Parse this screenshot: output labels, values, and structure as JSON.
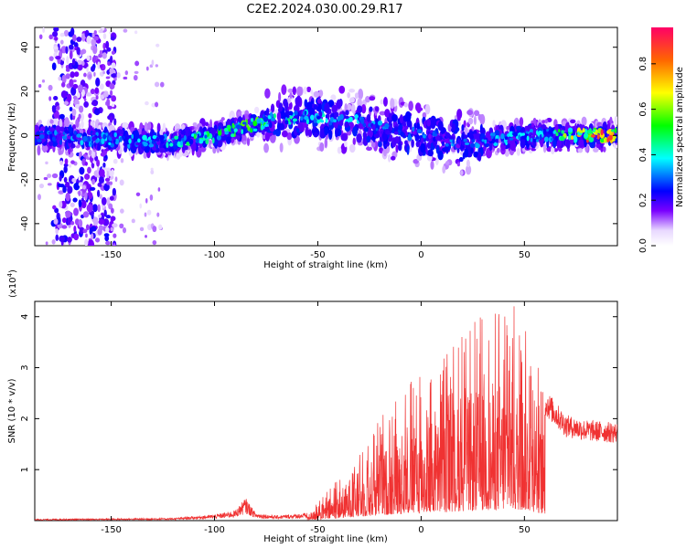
{
  "title": "C2E2.2024.030.00.29.R17",
  "chart_data": [
    {
      "type": "heatmap",
      "xlabel": "Height of straight line (km)",
      "ylabel": "Frequency (Hz)",
      "xlim": [
        -187,
        95
      ],
      "ylim": [
        -50,
        49
      ],
      "xticks": [
        -150,
        -100,
        -50,
        0,
        50
      ],
      "yticks": [
        -40,
        -20,
        0,
        20,
        40
      ],
      "xtick_labels": [
        "-150",
        "-100",
        "-50",
        "0",
        "50"
      ],
      "ytick_labels": [
        "-40",
        "-20",
        "0",
        "20",
        "40"
      ],
      "colorbar": {
        "label": "Normalized spectral amplitude",
        "range": [
          0,
          0.96
        ],
        "ticks": [
          0.0,
          0.2,
          0.4,
          0.6,
          0.8
        ],
        "tick_labels": [
          "0.0",
          "0.2",
          "0.4",
          "0.6",
          "0.8"
        ],
        "colors": [
          "#ffffff",
          "#7a00ff",
          "#0000ff",
          "#00ffff",
          "#00ff00",
          "#ffff00",
          "#ff6600",
          "#ff0066"
        ]
      },
      "ridge": {
        "x": [
          -185,
          -150,
          -120,
          -100,
          -80,
          -70,
          -50,
          -30,
          -10,
          0,
          20,
          40,
          60,
          80,
          93
        ],
        "center_hz": [
          0,
          -2,
          -3,
          0,
          5,
          8,
          8,
          6,
          2,
          0,
          -3,
          -1,
          0,
          0,
          0
        ],
        "peak_amplitude": [
          0.3,
          0.35,
          0.4,
          0.5,
          0.55,
          0.45,
          0.4,
          0.35,
          0.3,
          0.3,
          0.3,
          0.35,
          0.4,
          0.8,
          0.9
        ]
      }
    },
    {
      "type": "line",
      "xlabel": "Height of straight line (km)",
      "ylabel": "SNR (10 * v/v)",
      "yscale_label": "(x10",
      "yscale_exp": "4",
      "yscale_close": ")",
      "xlim": [
        -187,
        95
      ],
      "ylim": [
        0,
        4.3
      ],
      "xticks": [
        -150,
        -100,
        -50,
        0,
        50
      ],
      "yticks": [
        1,
        2,
        3,
        4
      ],
      "xtick_labels": [
        "-150",
        "-100",
        "-50",
        "0",
        "50"
      ],
      "ytick_labels": [
        "1",
        "2",
        "3",
        "4"
      ],
      "line_color": "#f03232",
      "series": [
        {
          "x": [
            -187,
            -150,
            -120,
            -100,
            -90,
            -85,
            -80,
            -70,
            -55,
            -50,
            -40,
            -30,
            -20,
            -10,
            0,
            10,
            20,
            30,
            40,
            50,
            60,
            70,
            80,
            95
          ],
          "values": [
            0.03,
            0.04,
            0.05,
            0.12,
            0.2,
            0.45,
            0.15,
            0.1,
            0.15,
            0.4,
            0.9,
            1.5,
            2.1,
            2.5,
            3.0,
            3.2,
            3.7,
            4.1,
            4.3,
            4.2,
            2.5,
            2.0,
            1.9,
            1.85
          ]
        }
      ]
    }
  ]
}
